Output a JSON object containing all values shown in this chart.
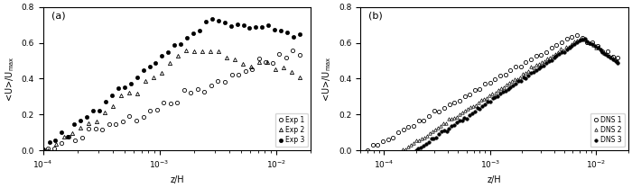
{
  "panel_a_label": "(a)",
  "panel_b_label": "(b)",
  "ylabel": "<U>/U_max",
  "xlabel": "z/H",
  "ylim": [
    0,
    0.8
  ],
  "xlim_a": [
    0.0001,
    0.02
  ],
  "xlim_b": [
    6e-05,
    0.02
  ],
  "yticks": [
    0.0,
    0.2,
    0.4,
    0.6,
    0.8
  ],
  "legend_a": [
    "Exp 1",
    "Exp 2",
    "Exp 3"
  ],
  "legend_b": [
    "DNS 1",
    "DNS 2",
    "DNS 3"
  ]
}
